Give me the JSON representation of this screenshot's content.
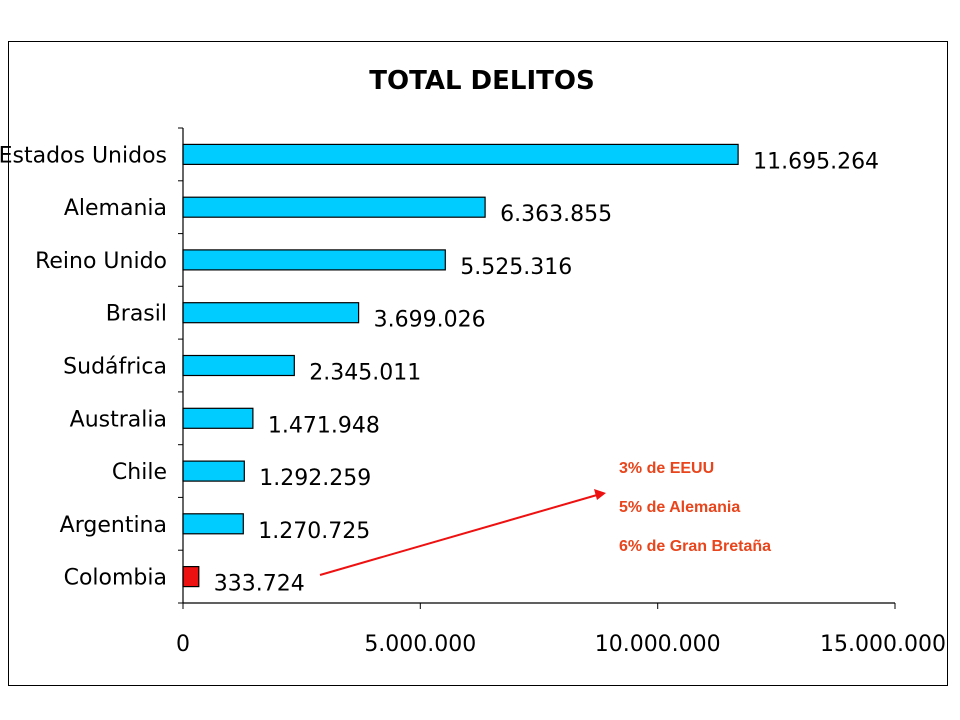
{
  "chart_data": {
    "type": "bar",
    "orientation": "horizontal",
    "title": "TOTAL DELITOS",
    "categories": [
      "Estados Unidos",
      "Alemania",
      "Reino Unido",
      "Brasil",
      "Sudáfrica",
      "Australia",
      "Chile",
      "Argentina",
      "Colombia"
    ],
    "values": [
      11695264,
      6363855,
      5525316,
      3699026,
      2345011,
      1471948,
      1292259,
      1270725,
      333724
    ],
    "value_labels": [
      "11.695.264",
      "6.363.855",
      "5.525.316",
      "3.699.026",
      "2.345.011",
      "1.471.948",
      "1.292.259",
      "1.270.725",
      "333.724"
    ],
    "xlim": [
      0,
      15000000
    ],
    "x_ticks": [
      0,
      5000000,
      10000000,
      15000000
    ],
    "x_tick_labels": [
      "0",
      "5.000.000",
      "10.000.000",
      "15.000.000"
    ],
    "bar_color": "#00ccff",
    "highlight_category": "Colombia",
    "highlight_color": "#ee1111",
    "grid": false,
    "annotations": [
      "3% de EEUU",
      "5% de Alemania",
      "6% de Gran Bretaña"
    ],
    "annotation_color": "#e8451c"
  }
}
